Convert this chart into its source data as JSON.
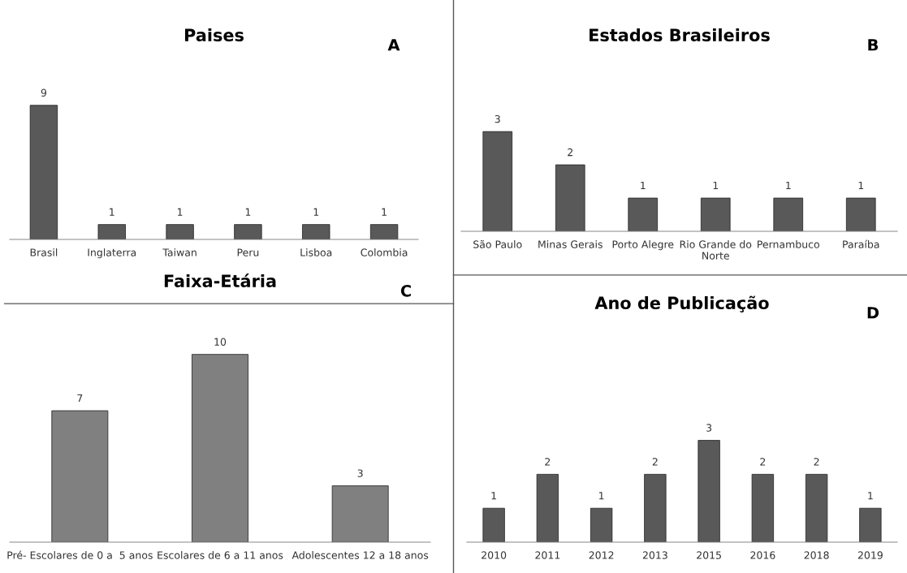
{
  "chart_data": [
    {
      "type": "bar",
      "title": "Paises",
      "annotations": [
        "A"
      ],
      "categories": [
        "Brasil",
        "Inglaterra",
        "Taiwan",
        "Peru",
        "Lisboa",
        "Colombia"
      ],
      "values": [
        9,
        1,
        1,
        1,
        1,
        1
      ],
      "color": "#595959",
      "data_labels": true,
      "tick_labels": "x"
    },
    {
      "type": "bar",
      "title": "Estados Brasileiros",
      "annotations": [
        "B"
      ],
      "categories": [
        "São Paulo",
        "Minas Gerais",
        "Porto Alegre",
        "Rio Grande do Norte",
        "Pernambuco",
        "Paraíba"
      ],
      "values": [
        3,
        2,
        1,
        1,
        1,
        1
      ],
      "color": "#595959",
      "data_labels": true,
      "tick_labels": "x"
    },
    {
      "type": "bar",
      "title": "Faixa-Etária",
      "annotations": [
        "C"
      ],
      "categories": [
        "Pré- Escolares de 0 a  5 anos",
        "Escolares de 6 a 11 anos",
        "Adolescentes 12 a 18 anos"
      ],
      "values": [
        7,
        10,
        3
      ],
      "color": "#808080",
      "data_labels": true,
      "tick_labels": "x"
    },
    {
      "type": "bar",
      "title": "Ano de Publicação",
      "annotations": [
        "D"
      ],
      "categories": [
        "2010",
        "2011",
        "2012",
        "2013",
        "2015",
        "2016",
        "2018",
        "2019"
      ],
      "values": [
        1,
        2,
        1,
        2,
        3,
        2,
        2,
        1
      ],
      "color": "#595959",
      "data_labels": true,
      "tick_labels": "x"
    }
  ]
}
